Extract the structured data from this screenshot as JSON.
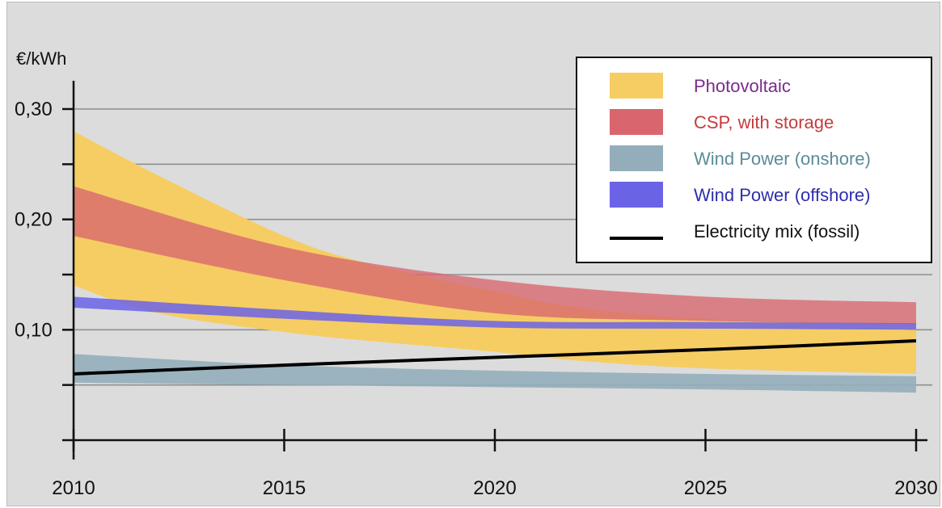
{
  "chart_data": {
    "type": "area",
    "title": "",
    "xlabel": "",
    "ylabel": "€/kWh",
    "x": [
      2010,
      2015,
      2020,
      2025,
      2030
    ],
    "xlim": [
      2010,
      2030
    ],
    "ylim": [
      0.0,
      0.33
    ],
    "x_ticks": [
      "2010",
      "2015",
      "2020",
      "2025",
      "2030"
    ],
    "y_ticks": [
      {
        "value": 0.05,
        "label": ""
      },
      {
        "value": 0.1,
        "label": "0,10"
      },
      {
        "value": 0.15,
        "label": ""
      },
      {
        "value": 0.2,
        "label": "0,20"
      },
      {
        "value": 0.25,
        "label": ""
      },
      {
        "value": 0.3,
        "label": "0,30"
      }
    ],
    "grid": true,
    "legend_position": "top-right",
    "series": [
      {
        "name": "Photovoltaic",
        "kind": "band",
        "color": "#f6cd63",
        "text_color": "#7a2a8c",
        "x": [
          2010,
          2012,
          2015,
          2017,
          2020,
          2022,
          2025,
          2030
        ],
        "upper": [
          0.28,
          0.24,
          0.185,
          0.16,
          0.135,
          0.12,
          0.11,
          0.105
        ],
        "lower": [
          0.14,
          0.115,
          0.098,
          0.09,
          0.08,
          0.072,
          0.065,
          0.06
        ]
      },
      {
        "name": "CSP, with storage",
        "kind": "band",
        "color": "#d9666e",
        "text_color": "#c43c3c",
        "x": [
          2010,
          2015,
          2020,
          2025,
          2030
        ],
        "upper": [
          0.23,
          0.175,
          0.145,
          0.13,
          0.125
        ],
        "lower": [
          0.185,
          0.145,
          0.115,
          0.108,
          0.105
        ]
      },
      {
        "name": "Wind Power (onshore)",
        "kind": "band",
        "color": "#93aeba",
        "text_color": "#5a8c99",
        "x": [
          2010,
          2015,
          2020,
          2025,
          2030
        ],
        "upper": [
          0.078,
          0.068,
          0.063,
          0.06,
          0.058
        ],
        "lower": [
          0.052,
          0.05,
          0.048,
          0.046,
          0.043
        ]
      },
      {
        "name": "Wind Power (offshore)",
        "kind": "band",
        "color": "#6b63e6",
        "text_color": "#2e2eaa",
        "x": [
          2010,
          2015,
          2020,
          2025,
          2030
        ],
        "upper": [
          0.13,
          0.118,
          0.108,
          0.107,
          0.106
        ],
        "lower": [
          0.12,
          0.11,
          0.102,
          0.101,
          0.1
        ]
      },
      {
        "name": "Electricity mix (fossil)",
        "kind": "line",
        "color": "#000000",
        "text_color": "#111111",
        "x": [
          2010,
          2015,
          2020,
          2025,
          2030
        ],
        "values": [
          0.06,
          0.068,
          0.075,
          0.082,
          0.09
        ]
      }
    ]
  }
}
